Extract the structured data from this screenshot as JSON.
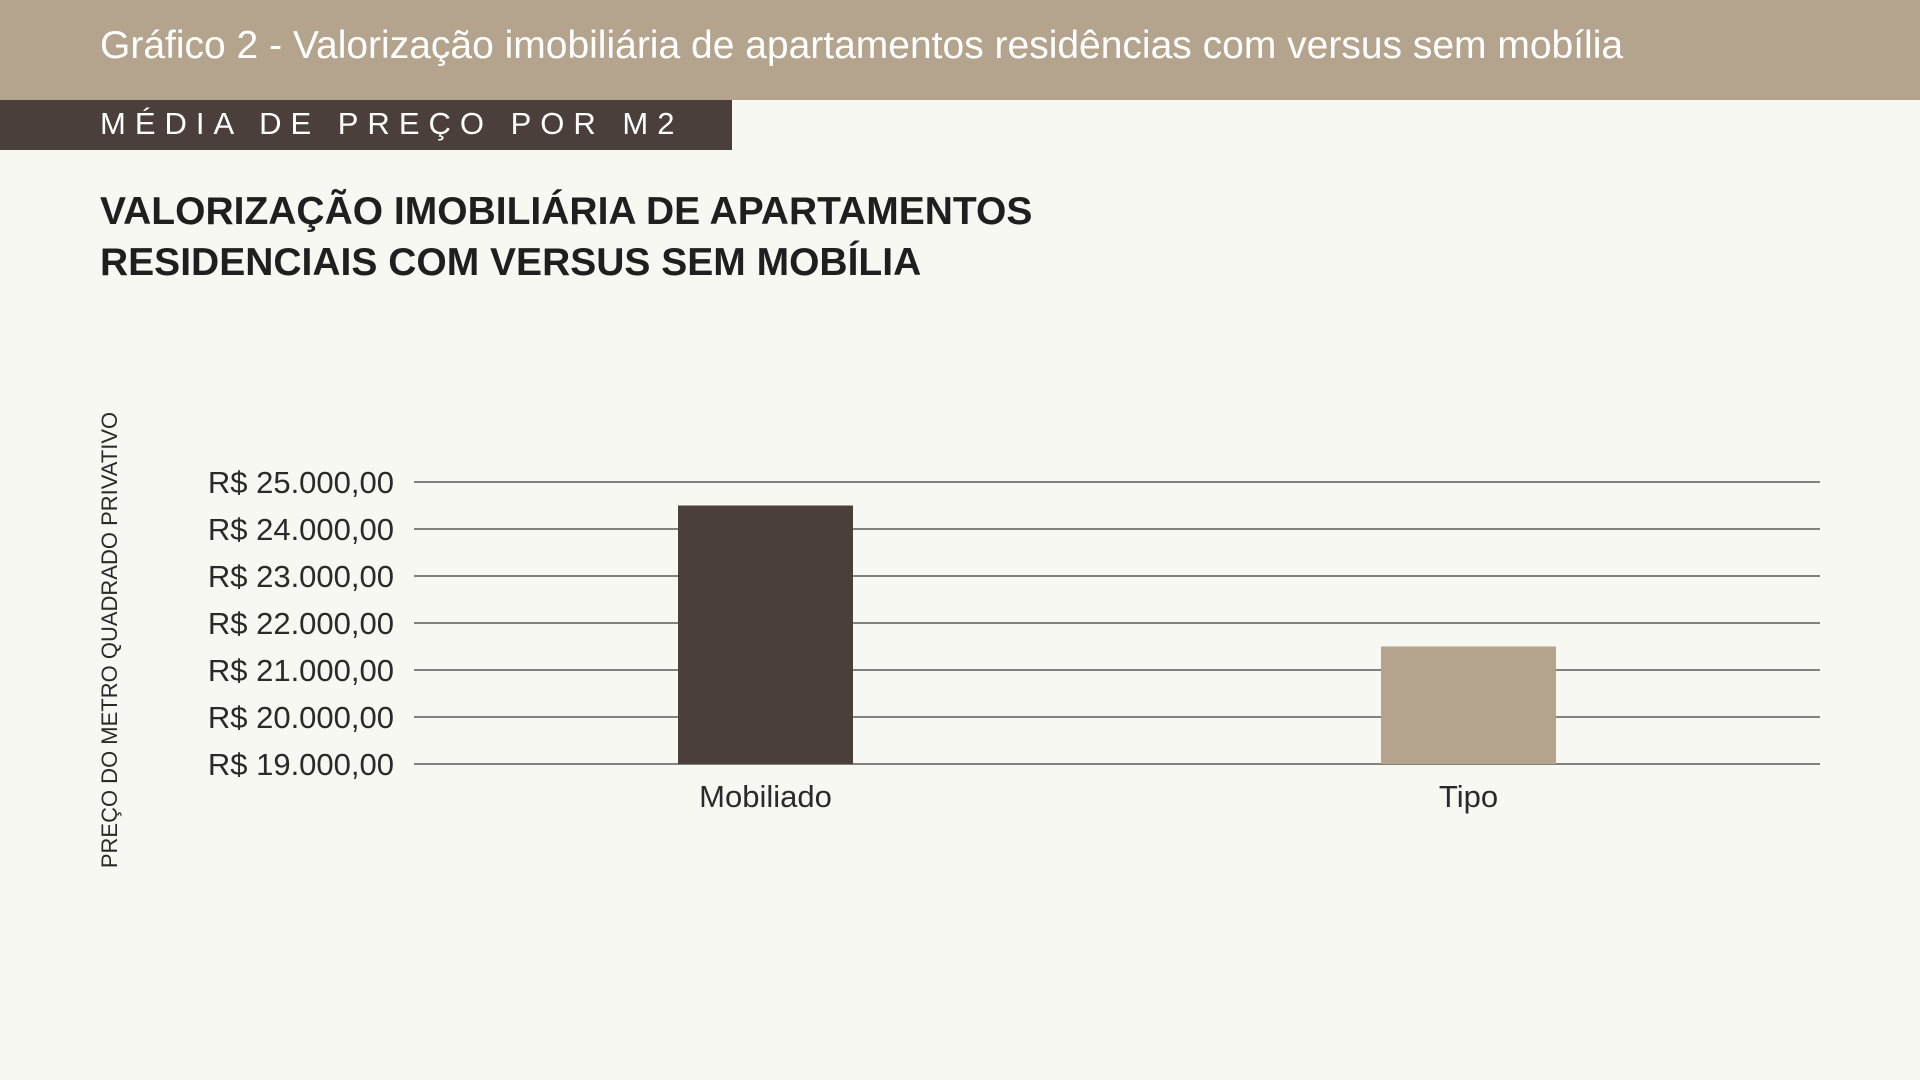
{
  "header": {
    "title": "Gráfico 2 - Valorização imobiliária de apartamentos residências com versus sem mobília",
    "subtitle": "MÉDIA DE PREÇO POR M2"
  },
  "chart_data": {
    "type": "bar",
    "title_lines": [
      "VALORIZAÇÃO IMOBILIÁRIA DE APARTAMENTOS",
      "RESIDENCIAIS COM VERSUS SEM MOBÍLIA"
    ],
    "ylabel": "PREÇO DO METRO QUADRADO PRIVATIVO",
    "xlabel": "",
    "categories": [
      "Mobiliado",
      "Tipo"
    ],
    "values": [
      24500,
      21500
    ],
    "bar_colors": [
      "#4b3f3b",
      "#b5a48d"
    ],
    "ylim": [
      19000,
      25000
    ],
    "yticks": [
      19000,
      20000,
      21000,
      22000,
      23000,
      24000,
      25000
    ],
    "ytick_labels": [
      "R$ 19.000,00",
      "R$ 20.000,00",
      "R$ 21.000,00",
      "R$ 22.000,00",
      "R$ 23.000,00",
      "R$ 24.000,00",
      "R$ 25.000,00"
    ],
    "grid": true,
    "legend": "none"
  },
  "colors": {
    "header_band": "#b5a48d",
    "subheader_band": "#4b3f3b",
    "background": "#f8f8f2",
    "gridline": "#3a3a3a"
  }
}
